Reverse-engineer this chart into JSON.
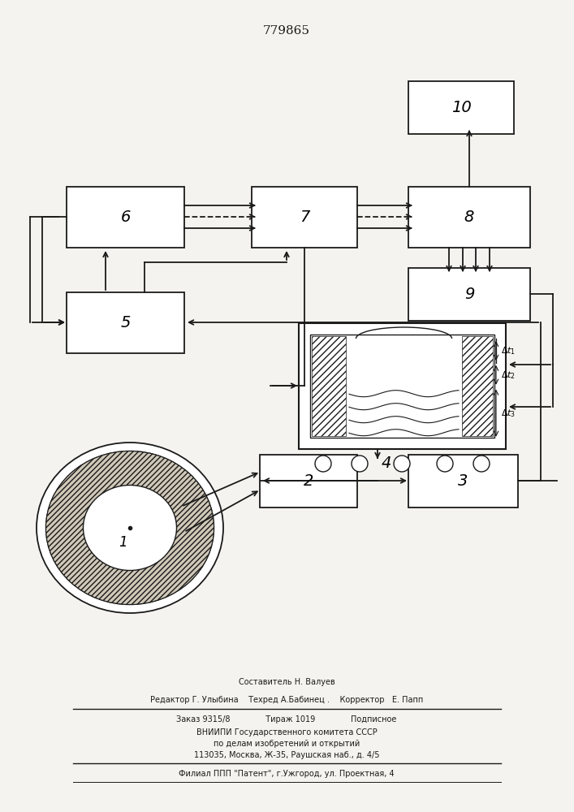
{
  "title": "779865",
  "bg_color": "#f5f3ef",
  "line_color": "#1a1a1a",
  "footer_lines": [
    "Составитель Н. Валуев",
    "Редактор Г. Улыбина    Техред А.Бабинец .    Корректор   Е. Папп",
    "Заказ 9315/8              Тираж 1019              Подписное",
    "ВНИИПИ Государственного комитета СССР",
    "по делам изобретений и открытий",
    "113035, Москва, Ж-35, Раушская наб., д. 4/5",
    "Филиал ППП \"Патент\", г.Ужгород, ул. Проектная, 4"
  ]
}
